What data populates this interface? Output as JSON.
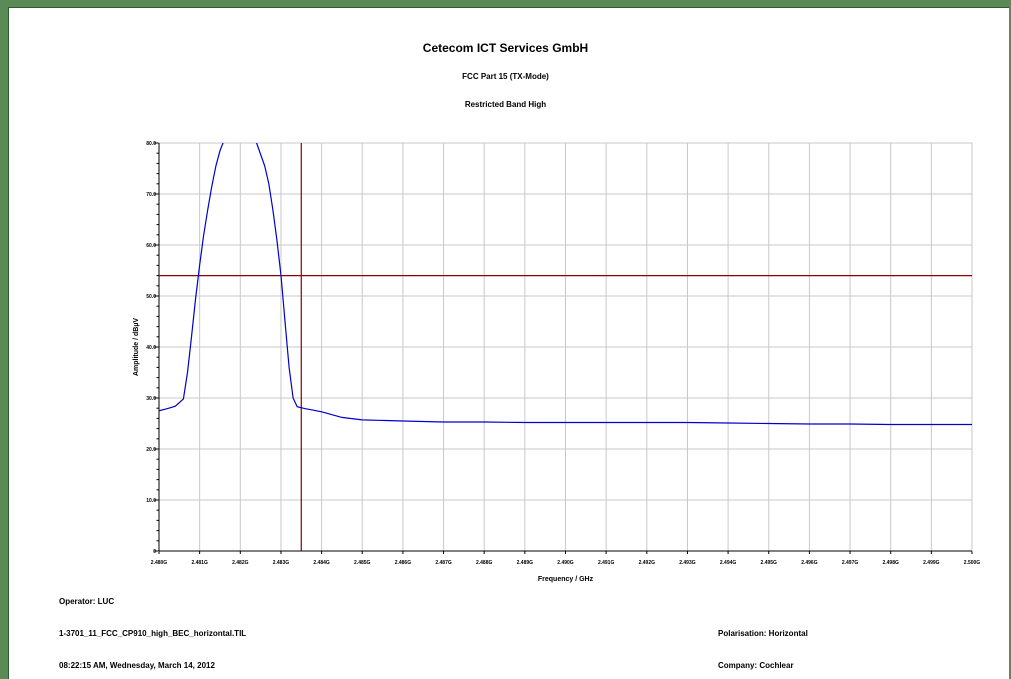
{
  "report": {
    "title": "Cetecom ICT Services GmbH",
    "subtitle": "FCC Part 15 (TX-Mode)",
    "subtitle2": "Restricted Band High"
  },
  "footer": {
    "operator": "Operator: LUC",
    "filename": "1-3701_11_FCC_CP910_high_BEC_horizontal.TIL",
    "timestamp": "08:22:15 AM, Wednesday, March 14, 2012",
    "polarisation": "Polarisation: Horizontal",
    "company": "Company: Cochlear"
  },
  "colors": {
    "frame": "#5a8a56",
    "trace": "#0000cc",
    "limit": "#8b0000",
    "grid": "#c8c8c8"
  },
  "chart_data": {
    "type": "line",
    "xlabel": "Frequency / GHz",
    "ylabel": "Amplitude / dBµV",
    "xlim": [
      2.48,
      2.5
    ],
    "ylim": [
      0,
      80
    ],
    "x_ticks": [
      "2.480G",
      "2.481G",
      "2.482G",
      "2.483G",
      "2.484G",
      "2.485G",
      "2.486G",
      "2.487G",
      "2.488G",
      "2.489G",
      "2.490G",
      "2.491G",
      "2.492G",
      "2.493G",
      "2.494G",
      "2.495G",
      "2.496G",
      "2.497G",
      "2.498G",
      "2.499G",
      "2.500G"
    ],
    "y_ticks": [
      "0",
      "10.0",
      "20.0",
      "30.0",
      "40.0",
      "50.0",
      "60.0",
      "70.0",
      "80.0"
    ],
    "grid": true,
    "limit_line": {
      "y": 54.0
    },
    "marker_line": {
      "x": 2.4835
    },
    "series": [
      {
        "x": [
          2.48,
          2.4802,
          2.4804,
          2.4806,
          2.4807,
          2.4808,
          2.4809,
          2.481,
          2.4811,
          2.4812,
          2.4813,
          2.4814,
          2.4815,
          2.4816,
          2.4818,
          2.482,
          2.4822,
          2.4824,
          2.4826,
          2.4827,
          2.4828,
          2.4829,
          2.483,
          2.4831,
          2.4832,
          2.4833,
          2.4834,
          2.4836,
          2.4838,
          2.484,
          2.4845,
          2.485,
          2.486,
          2.487,
          2.488,
          2.489,
          2.49,
          2.491,
          2.492,
          2.493,
          2.494,
          2.495,
          2.496,
          2.497,
          2.498,
          2.499,
          2.5
        ],
        "y": [
          27.5,
          27.9,
          28.4,
          29.8,
          35.0,
          42.0,
          49.5,
          56.0,
          62.0,
          67.0,
          71.5,
          75.5,
          78.5,
          80.5,
          82.5,
          83.0,
          82.5,
          80.0,
          75.5,
          72.0,
          67.0,
          61.0,
          54.0,
          45.0,
          36.0,
          30.0,
          28.3,
          27.9,
          27.6,
          27.3,
          26.2,
          25.7,
          25.5,
          25.3,
          25.3,
          25.2,
          25.2,
          25.2,
          25.2,
          25.2,
          25.1,
          25.0,
          24.9,
          24.9,
          24.8,
          24.8,
          24.8
        ]
      }
    ]
  }
}
